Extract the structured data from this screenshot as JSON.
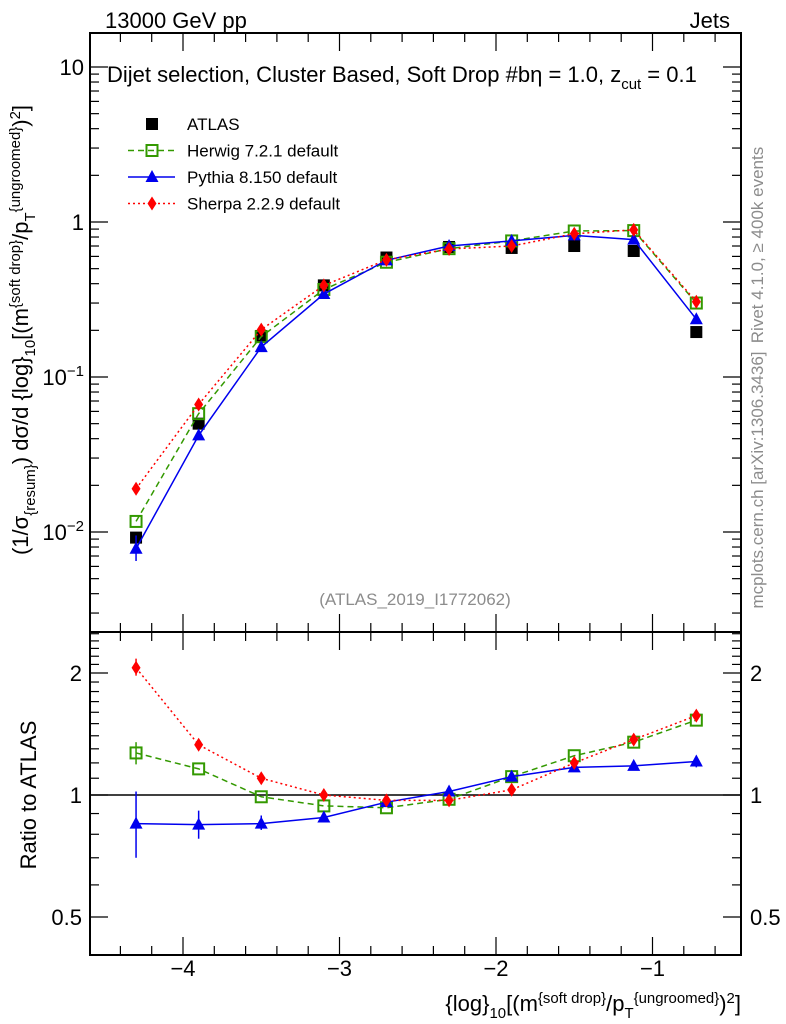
{
  "header": {
    "left": "13000 GeV pp",
    "right": "Jets"
  },
  "side": {
    "rivet": "Rivet 4.1.0, ≥ 400k events",
    "mcplots": "mcplots.cern.ch [arXiv:1306.3436]"
  },
  "analysis_tag": "(ATLAS_2019_I1772062)",
  "title_parts": [
    {
      "t": "Dijet selection, Cluster Based, Soft Drop #b",
      "s": ""
    },
    {
      "t": "η = 1.0, z",
      "s": ""
    },
    {
      "t": "cut",
      "s": "sub"
    },
    {
      "t": " = 0.1",
      "s": ""
    }
  ],
  "chart_data": {
    "type": "line",
    "x": [
      -4.3,
      -3.9,
      -3.5,
      -3.1,
      -2.7,
      -2.3,
      -1.9,
      -1.5,
      -1.12,
      -0.72
    ],
    "xlim": [
      -4.59,
      -0.43
    ],
    "xticks": [
      "−4",
      "−3",
      "−2",
      "−1"
    ],
    "xtick_values": [
      -4,
      -3,
      -2,
      -1
    ],
    "xlabel_parts": [
      {
        "t": "{log}",
        "s": ""
      },
      {
        "t": "10",
        "s": "sub"
      },
      {
        "t": "[(m",
        "s": ""
      },
      {
        "t": "{soft drop}",
        "s": "sup"
      },
      {
        "t": "/p",
        "s": ""
      },
      {
        "t": "T",
        "s": "sub"
      },
      {
        "t": "{ungroomed}",
        "s": "sup"
      },
      {
        "t": ")",
        "s": ""
      },
      {
        "t": "2",
        "s": "sup"
      },
      {
        "t": "]",
        "s": ""
      }
    ],
    "ylabel_parts": [
      {
        "t": "(1/σ",
        "s": ""
      },
      {
        "t": "{resum}",
        "s": "sub"
      },
      {
        "t": ") dσ/d {log}",
        "s": ""
      },
      {
        "t": "10",
        "s": "sub"
      },
      {
        "t": "[(m",
        "s": ""
      },
      {
        "t": "{soft drop}",
        "s": "sup"
      },
      {
        "t": "/p",
        "s": ""
      },
      {
        "t": "T",
        "s": "sub"
      },
      {
        "t": "{ungroomed}",
        "s": "sup"
      },
      {
        "t": ")",
        "s": ""
      },
      {
        "t": "2",
        "s": "sup"
      },
      {
        "t": "]",
        "s": ""
      }
    ],
    "main": {
      "yscale": "log",
      "ylim": [
        0.0023,
        16
      ],
      "yticks": [
        {
          "v": 0.01,
          "base": "10",
          "exp": "−2"
        },
        {
          "v": 0.1,
          "base": "10",
          "exp": "−1"
        },
        {
          "v": 1,
          "base": "1",
          "exp": ""
        },
        {
          "v": 10,
          "base": "10",
          "exp": ""
        }
      ]
    },
    "ratio": {
      "ylabel": "Ratio to ATLAS",
      "yscale": "log",
      "ylim": [
        0.4,
        2.5
      ],
      "yticks": [
        {
          "v": 0.5,
          "label": "0.5"
        },
        {
          "v": 1,
          "label": "1"
        },
        {
          "v": 2,
          "label": "2"
        }
      ]
    },
    "legend_position": "top-left",
    "series": [
      {
        "name": "ATLAS",
        "color": "#000000",
        "marker": "square-filled",
        "dash": "none",
        "values": [
          0.0092,
          0.05,
          0.184,
          0.39,
          0.59,
          0.69,
          0.68,
          0.7,
          0.65,
          0.195
        ]
      },
      {
        "name": "Herwig 7.2.1 default",
        "color": "#339900",
        "marker": "square-open",
        "dash": "dashed",
        "values": [
          0.0117,
          0.058,
          0.182,
          0.367,
          0.55,
          0.673,
          0.755,
          0.875,
          0.88,
          0.3
        ],
        "ratio": [
          1.27,
          1.16,
          0.99,
          0.94,
          0.93,
          0.976,
          1.11,
          1.25,
          1.35,
          1.53
        ],
        "ratio_err": [
          [
            1.19,
            1.35
          ],
          null,
          null,
          null,
          null,
          null,
          null,
          null,
          null,
          null
        ]
      },
      {
        "name": "Pythia 8.150 default",
        "color": "#0000ee",
        "marker": "triangle",
        "dash": "solid",
        "values": [
          0.0078,
          0.042,
          0.156,
          0.343,
          0.566,
          0.7,
          0.755,
          0.82,
          0.77,
          0.236
        ],
        "ratio": [
          0.85,
          0.845,
          0.85,
          0.88,
          0.96,
          1.02,
          1.11,
          1.17,
          1.18,
          1.21
        ],
        "ratio_err": [
          [
            0.7,
            1.02
          ],
          [
            0.78,
            0.915
          ],
          [
            0.82,
            0.89
          ],
          null,
          null,
          null,
          null,
          null,
          null,
          [
            1.17,
            1.25
          ]
        ]
      },
      {
        "name": "Sherpa 2.2.9 default",
        "color": "#ff0000",
        "marker": "diamond",
        "dash": "dotted",
        "values": [
          0.019,
          0.0665,
          0.202,
          0.39,
          0.57,
          0.67,
          0.7,
          0.84,
          0.89,
          0.306
        ],
        "ratio": [
          2.06,
          1.33,
          1.1,
          1.0,
          0.97,
          0.97,
          1.03,
          1.2,
          1.37,
          1.57
        ],
        "ratio_err": [
          [
            1.97,
            2.17
          ],
          null,
          null,
          null,
          null,
          null,
          null,
          null,
          null,
          null
        ]
      }
    ]
  }
}
